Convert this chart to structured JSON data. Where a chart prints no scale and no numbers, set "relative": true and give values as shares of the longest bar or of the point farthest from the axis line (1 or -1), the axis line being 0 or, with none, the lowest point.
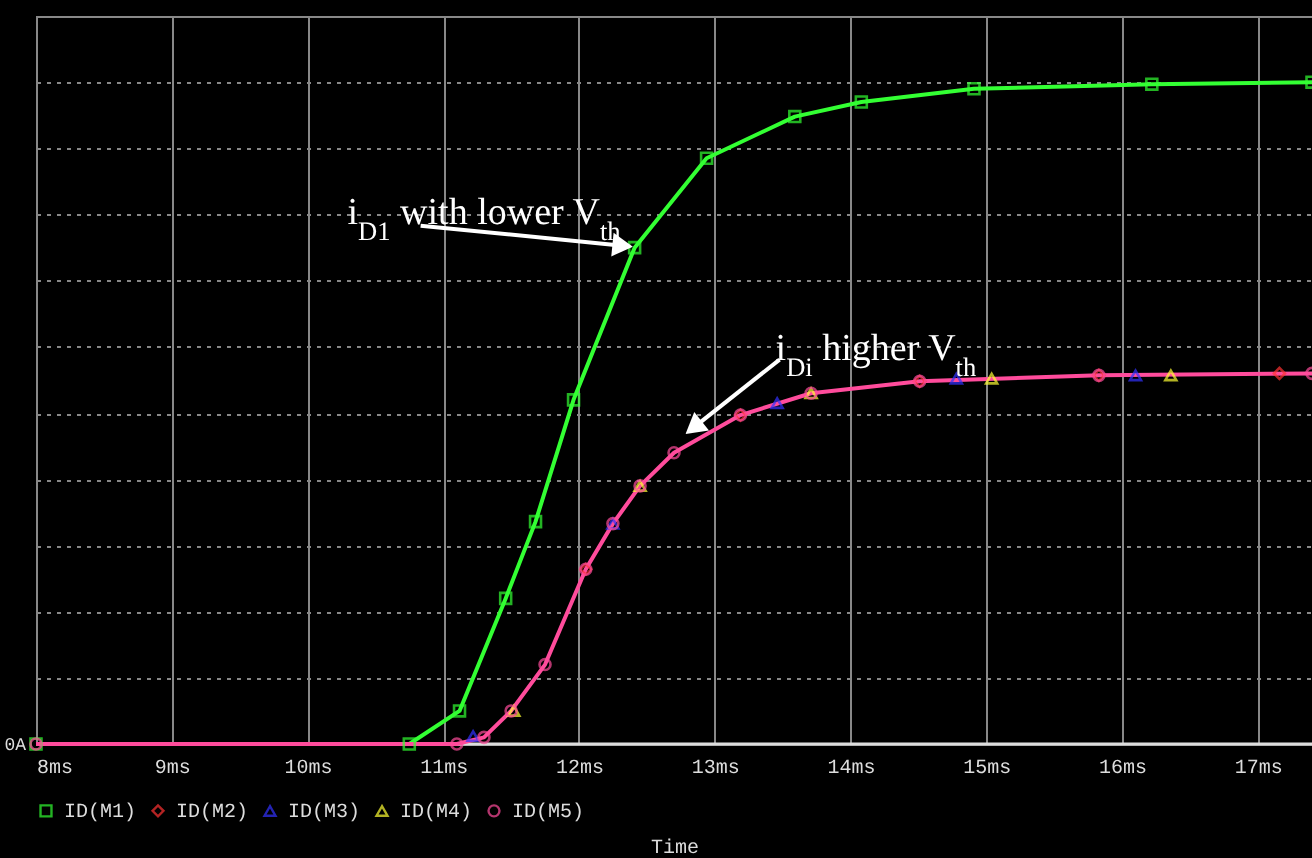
{
  "chart_data": {
    "type": "line",
    "relative": true,
    "xlabel": "Time",
    "xlim": [
      8,
      17.4
    ],
    "xticks": [
      {
        "value": 8,
        "label": "8ms"
      },
      {
        "value": 9,
        "label": "9ms"
      },
      {
        "value": 10,
        "label": "10ms"
      },
      {
        "value": 11,
        "label": "11ms"
      },
      {
        "value": 12,
        "label": "12ms"
      },
      {
        "value": 13,
        "label": "13ms"
      },
      {
        "value": 14,
        "label": "14ms"
      },
      {
        "value": 15,
        "label": "15ms"
      },
      {
        "value": 16,
        "label": "16ms"
      },
      {
        "value": 17,
        "label": "17ms"
      }
    ],
    "grid": true,
    "legend": "bottom",
    "tick_labels": "x",
    "series": [
      {
        "name": "ID(M1)",
        "color": "#33ff33",
        "marker": "square",
        "x": [
          8,
          10.75,
          11.12,
          11.46,
          11.68,
          11.96,
          12.41,
          12.94,
          13.59,
          14.08,
          14.91,
          16.22,
          17.4
        ],
        "values": [
          0,
          0,
          0.05,
          0.22,
          0.336,
          0.52,
          0.75,
          0.885,
          0.948,
          0.97,
          0.99,
          0.997,
          1
        ]
      },
      {
        "name": "ID(M2)",
        "type": "scatter",
        "color": "#ff3333",
        "marker": "diamond",
        "x": [
          12.05,
          13.19,
          14.51,
          15.83,
          17.16
        ],
        "values": [
          0.264,
          0.497,
          0.548,
          0.557,
          0.56
        ]
      },
      {
        "name": "ID(M3)",
        "type": "scatter",
        "color": "#3333ff",
        "marker": "triangle",
        "x": [
          11.22,
          12.25,
          13.46,
          14.78,
          16.1
        ],
        "values": [
          0.012,
          0.333,
          0.515,
          0.552,
          0.557
        ]
      },
      {
        "name": "ID(M4)",
        "type": "scatter",
        "color": "#ffff33",
        "marker": "triangle",
        "x": [
          11.52,
          12.45,
          13.71,
          15.04,
          16.36
        ],
        "values": [
          0.05,
          0.39,
          0.53,
          0.552,
          0.557
        ]
      },
      {
        "name": "ID(M5)",
        "color": "#ff4c9c",
        "marker": "circle",
        "x": [
          8,
          11.1,
          11.3,
          11.5,
          11.75,
          12.05,
          12.25,
          12.45,
          12.7,
          13.19,
          13.71,
          14.51,
          15.83,
          17.4
        ],
        "values": [
          0,
          0,
          0.01,
          0.05,
          0.12,
          0.264,
          0.333,
          0.39,
          0.44,
          0.497,
          0.53,
          0.548,
          0.557,
          0.56
        ]
      }
    ],
    "annotations": [
      {
        "text": "i$_{D1}$ with lower V$_{th}$",
        "x": 12.41,
        "y": 0.75
      },
      {
        "text": "i$_{Di}$ higher V$_{th}$",
        "x": 12.8,
        "y": 0.46
      },
      "0A"
    ]
  }
}
